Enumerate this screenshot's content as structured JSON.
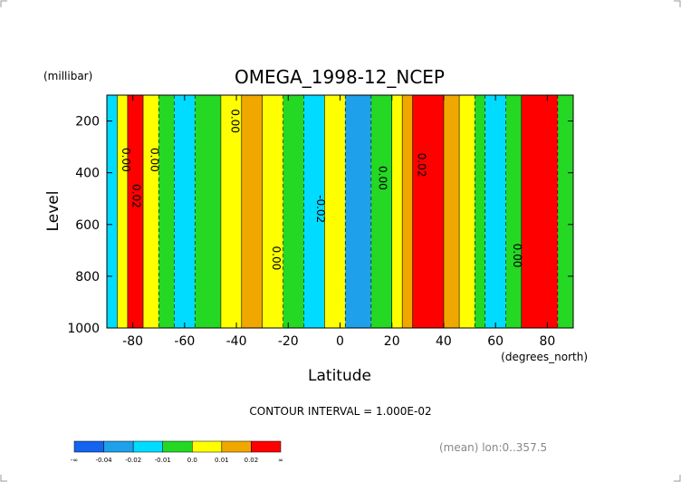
{
  "chart_data": {
    "type": "heatmap",
    "title": "OMEGA_1998-12_NCEP",
    "units_label": "(millibar)",
    "xlabel": "Latitude",
    "xunits": "(degrees_north)",
    "ylabel": "Level",
    "x_range": [
      -90,
      90
    ],
    "y_range": [
      1000,
      100
    ],
    "x_ticks": [
      -80,
      -60,
      -40,
      -20,
      0,
      20,
      40,
      60,
      80
    ],
    "y_ticks": [
      200,
      400,
      600,
      800,
      1000
    ],
    "grid": false,
    "contour_interval_text": "CONTOUR INTERVAL = 1.000E-02",
    "footnote": "(mean) lon:0..357.5",
    "colorbar": {
      "labels": [
        "-∞",
        "-0.04",
        "-0.02",
        "-0.01",
        "0.0",
        "0.01",
        "0.02",
        "∞"
      ],
      "colors": [
        "#1464f0",
        "#1ea0ea",
        "#00dcff",
        "#24d824",
        "#ffff00",
        "#f0a800",
        "#ff0000"
      ]
    },
    "bands": [
      {
        "lat_min": -90,
        "lat_max": -86,
        "omega": -0.02
      },
      {
        "lat_min": -86,
        "lat_max": -82,
        "omega": 0.0
      },
      {
        "lat_min": -82,
        "lat_max": -76,
        "omega": 0.03
      },
      {
        "lat_min": -76,
        "lat_max": -70,
        "omega": 0.005
      },
      {
        "lat_min": -70,
        "lat_max": -64,
        "omega": -0.005
      },
      {
        "lat_min": -64,
        "lat_max": -56,
        "omega": -0.015
      },
      {
        "lat_min": -56,
        "lat_max": -46,
        "omega": -0.005
      },
      {
        "lat_min": -46,
        "lat_max": -38,
        "omega": 0.005
      },
      {
        "lat_min": -38,
        "lat_max": -30,
        "omega": 0.015
      },
      {
        "lat_min": -30,
        "lat_max": -22,
        "omega": 0.005
      },
      {
        "lat_min": -22,
        "lat_max": -14,
        "omega": -0.005
      },
      {
        "lat_min": -14,
        "lat_max": -6,
        "omega": -0.015
      },
      {
        "lat_min": -6,
        "lat_max": 2,
        "omega": 0.005
      },
      {
        "lat_min": 2,
        "lat_max": 12,
        "omega": -0.025
      },
      {
        "lat_min": 12,
        "lat_max": 20,
        "omega": -0.005
      },
      {
        "lat_min": 20,
        "lat_max": 24,
        "omega": 0.005
      },
      {
        "lat_min": 24,
        "lat_max": 28,
        "omega": 0.015
      },
      {
        "lat_min": 28,
        "lat_max": 40,
        "omega": 0.03
      },
      {
        "lat_min": 40,
        "lat_max": 46,
        "omega": 0.015
      },
      {
        "lat_min": 46,
        "lat_max": 52,
        "omega": 0.005
      },
      {
        "lat_min": 52,
        "lat_max": 56,
        "omega": -0.005
      },
      {
        "lat_min": 56,
        "lat_max": 64,
        "omega": -0.015
      },
      {
        "lat_min": 64,
        "lat_max": 70,
        "omega": -0.005
      },
      {
        "lat_min": 70,
        "lat_max": 84,
        "omega": 0.03
      },
      {
        "lat_min": 84,
        "lat_max": 90,
        "omega": -0.005
      }
    ],
    "contour_labels": [
      {
        "text": "0.00",
        "lat": -42,
        "level": 200
      },
      {
        "text": "0.00",
        "lat": -84,
        "level": 350
      },
      {
        "text": "0.00",
        "lat": -73,
        "level": 350
      },
      {
        "text": "0.02",
        "lat": -80,
        "level": 490
      },
      {
        "text": "-0.02",
        "lat": -9,
        "level": 540
      },
      {
        "text": "0.00",
        "lat": 15,
        "level": 420
      },
      {
        "text": "0.02",
        "lat": 30,
        "level": 370
      },
      {
        "text": "0.00",
        "lat": -26,
        "level": 730
      },
      {
        "text": "0.00",
        "lat": 67,
        "level": 720
      }
    ]
  }
}
